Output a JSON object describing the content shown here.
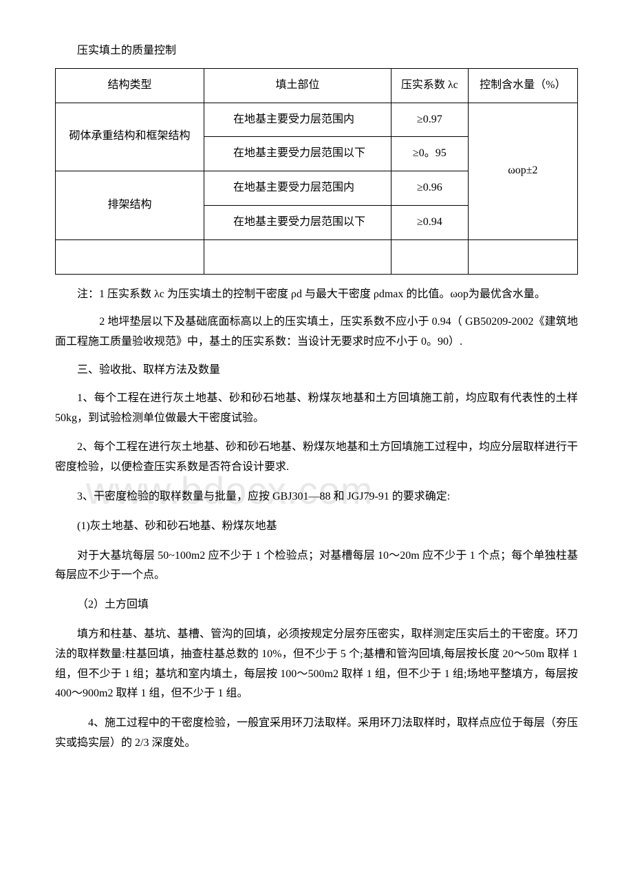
{
  "title": "压实填土的质量控制",
  "watermark": "www.bdocx.com",
  "table": {
    "headers": [
      "结构类型",
      "填土部位",
      "压实系数 λc",
      "控制含水量（%）"
    ],
    "moisture": "ωop±2",
    "groups": [
      {
        "structure": "砌体承重结构和框架结构",
        "rows": [
          {
            "part": "在地基主要受力层范围内",
            "coef": "≥0.97"
          },
          {
            "part": "在地基主要受力层范围以下",
            "coef": "≥0。95"
          }
        ]
      },
      {
        "structure": "排架结构",
        "rows": [
          {
            "part": "在地基主要受力层范围内",
            "coef": "≥0.96"
          },
          {
            "part": "在地基主要受力层范围以下",
            "coef": "≥0.94"
          }
        ]
      }
    ]
  },
  "notes": {
    "n1": "注：1 压实系数 λc 为压实填土的控制干密度 ρd 与最大干密度 ρdmax 的比值。ωop为最优含水量。",
    "n2": "　　2 地坪垫层以下及基础底面标高以上的压实填土，压实系数不应小于 0.94（ GB50209-2002《建筑地面工程施工质量验收规范》中，基土的压实系数：当设计无要求时应不小于 0。90）."
  },
  "section3": {
    "heading": "三、验收批、取样方法及数量",
    "p1": "1、每个工程在进行灰土地基、砂和砂石地基、粉煤灰地基和土方回填施工前，均应取有代表性的土样 50kg，到试验检测单位做最大干密度试验。",
    "p2": "2、每个工程在进行灰土地基、砂和砂石地基、粉煤灰地基和土方回填施工过程中，均应分层取样进行干密度检验，以便检查压实系数是否符合设计要求.",
    "p3": "3、干密度检验的取样数量与批量，应按 GBJ301—88 和 JGJ79-91 的要求确定:",
    "p3a": "(1)灰土地基、砂和砂石地基、粉煤灰地基",
    "p3a_body": "对于大基坑每层 50~100m2 应不少于 1 个检验点；对基槽每层 10～20m 应不少于 1 个点；每个单独柱基每层应不少于一个点。",
    "p3b": "（2）土方回填",
    "p3b_body": "填方和柱基、基坑、基槽、管沟的回填，必须按规定分层夯压密实，取样测定压实后土的干密度。环刀法的取样数量:柱基回填，抽查柱基总数的 10%，但不少于 5 个;基槽和管沟回填,每层按长度 20～50m 取样 1 组，但不少于 1 组；基坑和室内填土，每层按 100～500m2 取样 1 组，但不少于 1 组;场地平整填方，每层按 400～900m2 取样 1 组，但不少于 1 组。",
    "p4": "　4、施工过程中的干密度检验，一般宜采用环刀法取样。采用环刀法取样时，取样点应位于每层（夯压实或捣实层）的 2/3 深度处。"
  }
}
